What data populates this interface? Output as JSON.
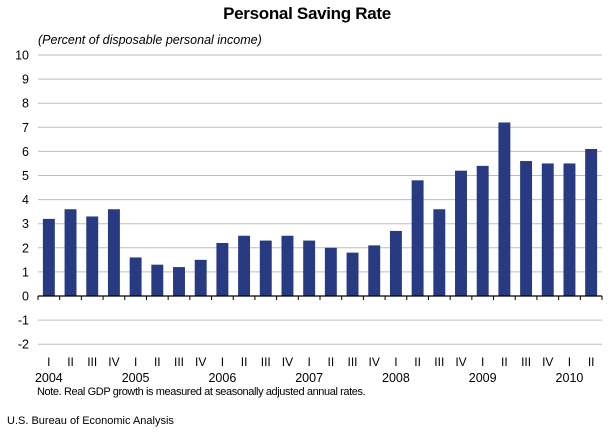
{
  "chart_data": {
    "type": "bar",
    "title": "Personal Saving Rate",
    "subtitle": "(Percent of disposable personal income)",
    "xlabel": "",
    "ylabel": "",
    "ylim": [
      -2,
      10
    ],
    "yticks": [
      "10",
      "9",
      "8",
      "7",
      "6",
      "5",
      "4",
      "3",
      "2",
      "1",
      "0",
      "-1",
      "-2"
    ],
    "ytick_values": [
      10,
      9,
      8,
      7,
      6,
      5,
      4,
      3,
      2,
      1,
      0,
      -1,
      -2
    ],
    "grid": true,
    "legend": "none",
    "bar_color": "#283A82",
    "categories": [
      "2004 I",
      "2004 II",
      "2004 III",
      "2004 IV",
      "2005 I",
      "2005 II",
      "2005 III",
      "2005 IV",
      "2006 I",
      "2006 II",
      "2006 III",
      "2006 IV",
      "2007 I",
      "2007 II",
      "2007 III",
      "2007 IV",
      "2008 I",
      "2008 II",
      "2008 III",
      "2008 IV",
      "2009 I",
      "2009 II",
      "2009 III",
      "2009 IV",
      "2010 I",
      "2010 II"
    ],
    "quarter_labels": [
      "I",
      "II",
      "III",
      "IV",
      "I",
      "II",
      "III",
      "IV",
      "I",
      "II",
      "III",
      "IV",
      "I",
      "II",
      "III",
      "IV",
      "I",
      "II",
      "III",
      "IV",
      "I",
      "II",
      "III",
      "IV",
      "I",
      "II"
    ],
    "year_labels": [
      {
        "label": "2004",
        "start_index": 0
      },
      {
        "label": "2005",
        "start_index": 4
      },
      {
        "label": "2006",
        "start_index": 8
      },
      {
        "label": "2007",
        "start_index": 12
      },
      {
        "label": "2008",
        "start_index": 16
      },
      {
        "label": "2009",
        "start_index": 20
      },
      {
        "label": "2010",
        "start_index": 24
      }
    ],
    "values": [
      3.2,
      3.6,
      3.3,
      3.6,
      1.6,
      1.3,
      1.2,
      1.5,
      2.2,
      2.5,
      2.3,
      2.5,
      2.3,
      2.0,
      1.8,
      2.1,
      2.7,
      4.8,
      3.6,
      5.2,
      5.4,
      7.2,
      5.6,
      5.5,
      5.5,
      6.1
    ]
  },
  "note": "Note.  Real GDP growth is measured at seasonally adjusted annual rates.",
  "source": "U.S. Bureau of Economic Analysis"
}
